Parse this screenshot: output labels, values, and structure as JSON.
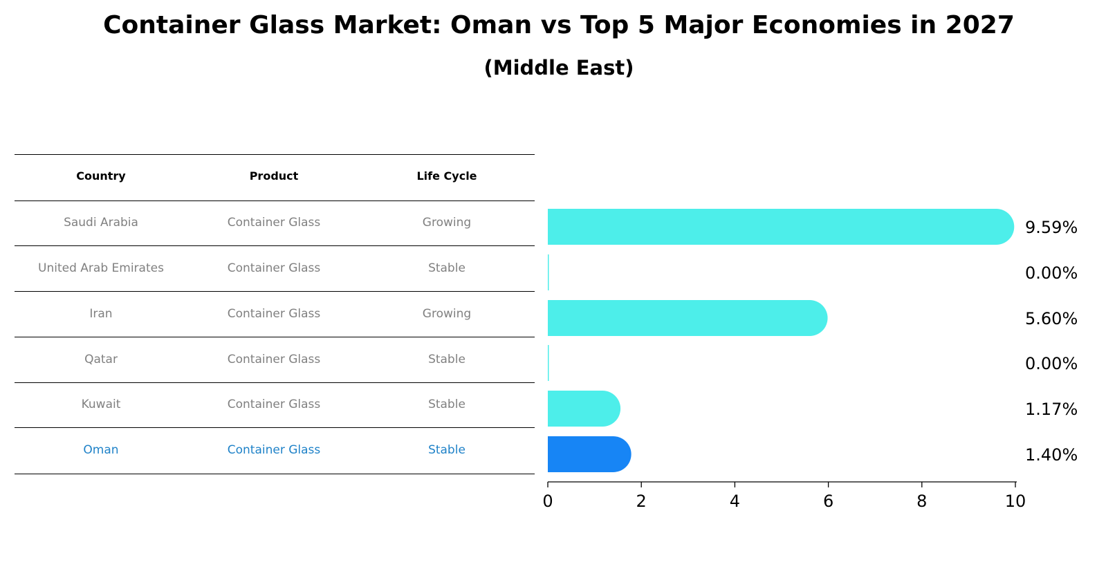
{
  "title": "Container Glass Market: Oman vs Top 5 Major Economies in 2027",
  "subtitle": "(Middle East)",
  "table": {
    "headers": [
      "Country",
      "Product",
      "Life Cycle"
    ],
    "rows": [
      [
        "Saudi Arabia",
        "Container Glass",
        "Growing"
      ],
      [
        "United Arab Emirates",
        "Container Glass",
        "Stable"
      ],
      [
        "Iran",
        "Container Glass",
        "Growing"
      ],
      [
        "Qatar",
        "Container Glass",
        "Stable"
      ],
      [
        "Kuwait",
        "Container Glass",
        "Stable"
      ],
      [
        "Oman",
        "Container Glass",
        "Stable"
      ]
    ],
    "highlight_row": 5,
    "highlight_color": "#1f82c8",
    "text_color": "#808080"
  },
  "chart_data": {
    "type": "bar",
    "orientation": "horizontal",
    "categories": [
      "Saudi Arabia",
      "United Arab Emirates",
      "Iran",
      "Qatar",
      "Kuwait",
      "Oman"
    ],
    "values": [
      9.59,
      0.0,
      5.6,
      0.0,
      1.17,
      1.4
    ],
    "value_labels": [
      "9.59%",
      "0.00%",
      "5.60%",
      "0.00%",
      "1.17%",
      "1.40%"
    ],
    "xlim": [
      0,
      10
    ],
    "xticks": [
      0,
      2,
      4,
      6,
      8,
      10
    ],
    "bar_color": "#4deeea",
    "highlight_color": "#1785f5",
    "highlight_index": 5,
    "grid": false
  }
}
